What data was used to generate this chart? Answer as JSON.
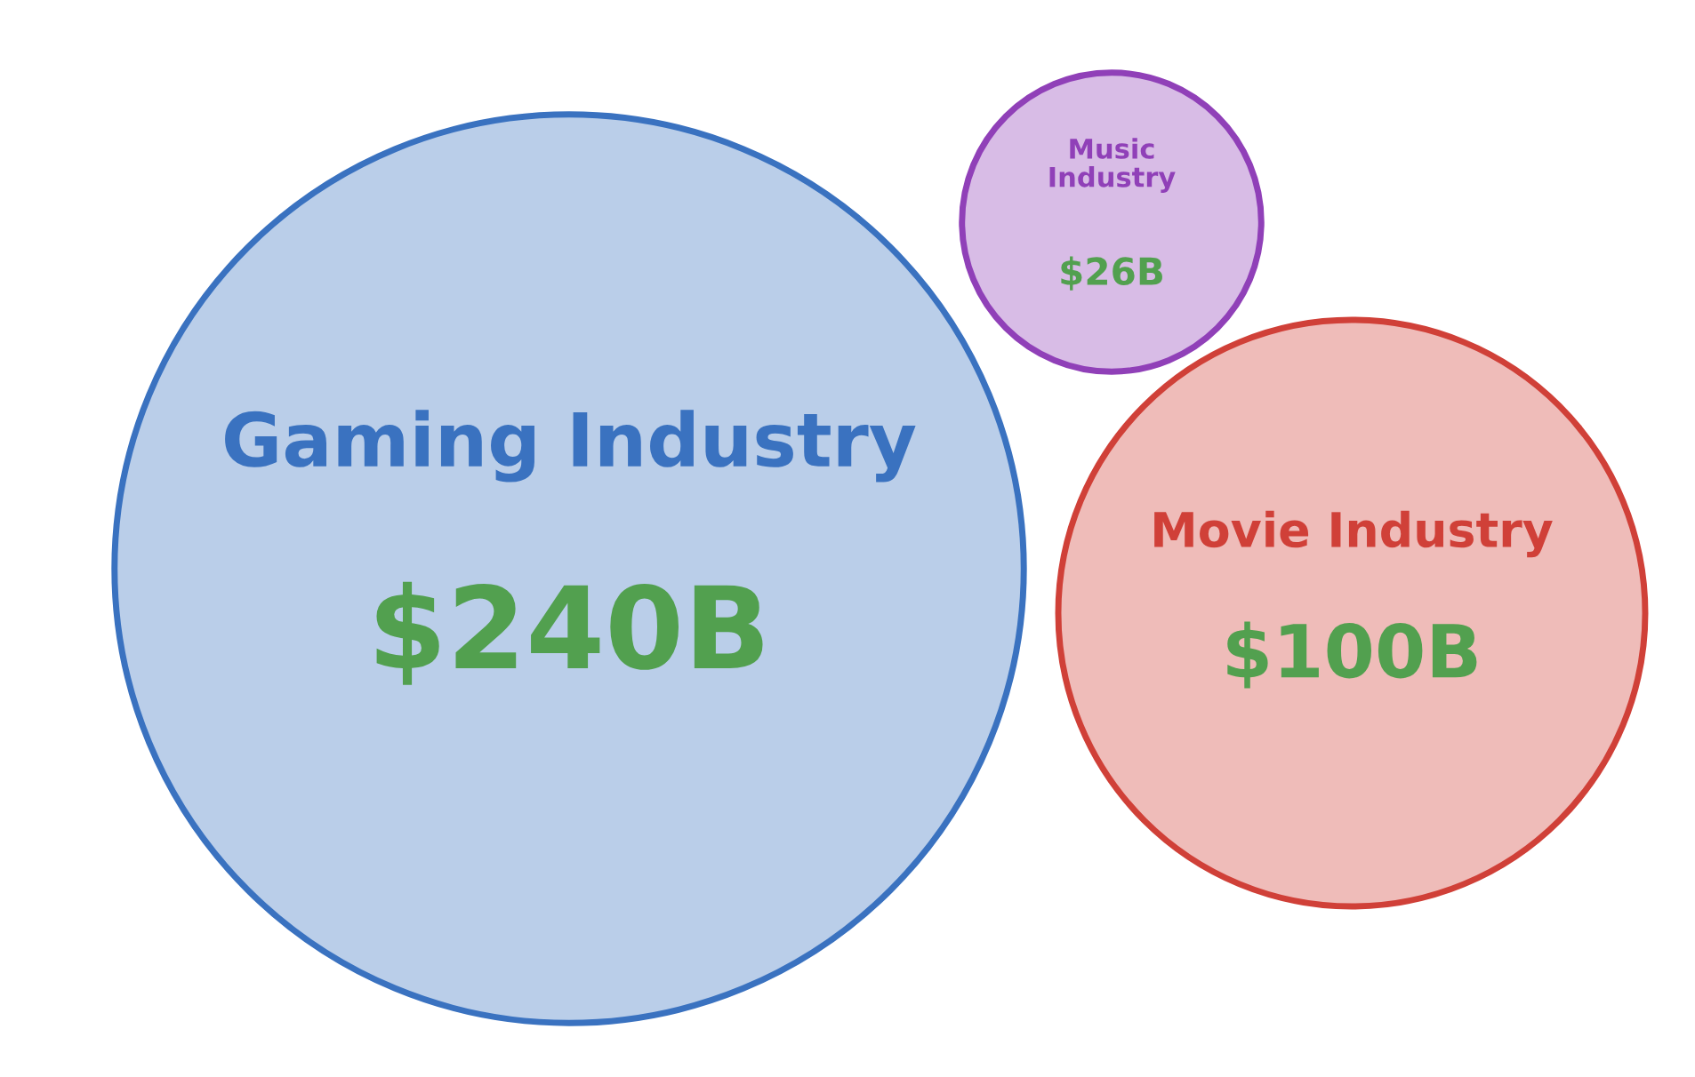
{
  "chart_data": {
    "type": "other",
    "categories": [
      "Gaming Industry",
      "Music Industry",
      "Movie Industry"
    ],
    "values": [
      240,
      26,
      100
    ],
    "value_labels": [
      "$240B",
      "$26B",
      "$100B"
    ],
    "colors": [
      "#3a72c0",
      "#9040b8",
      "#d04038"
    ]
  }
}
